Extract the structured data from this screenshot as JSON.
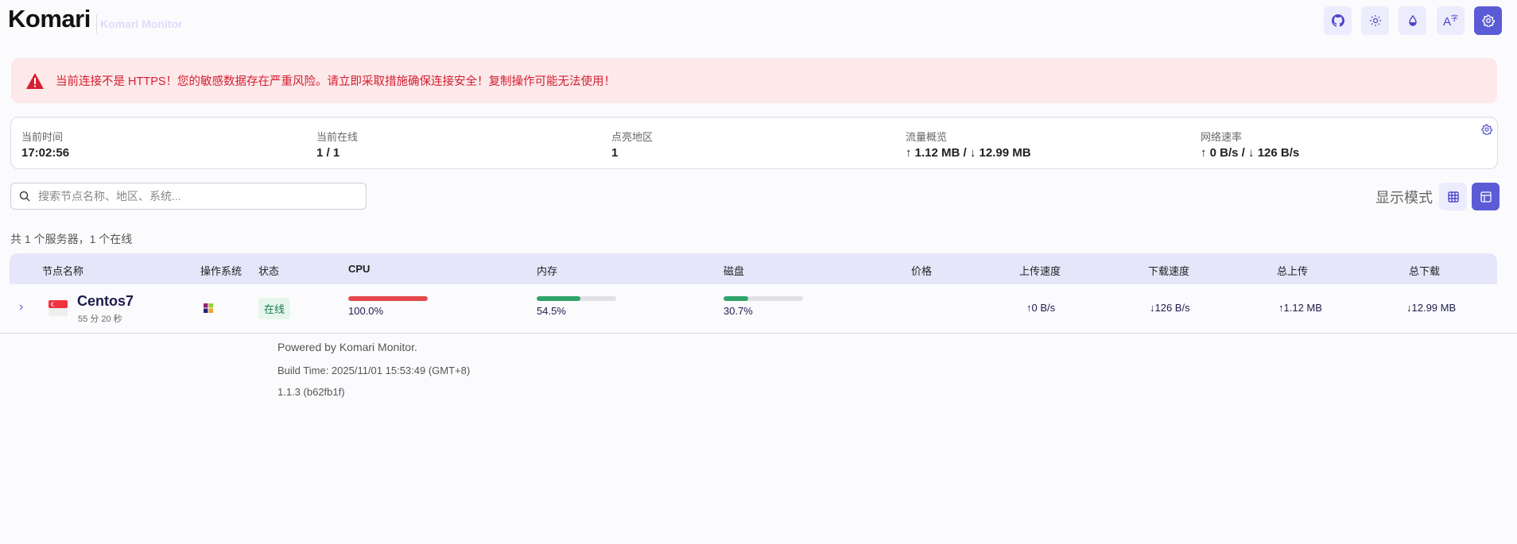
{
  "header": {
    "logo": "Komari",
    "subtitle": "Komari Monitor",
    "buttons": [
      {
        "name": "github-icon"
      },
      {
        "name": "sun-icon"
      },
      {
        "name": "drop-icon"
      },
      {
        "name": "translate-icon"
      },
      {
        "name": "gear-icon"
      }
    ]
  },
  "alert": {
    "text": "当前连接不是 HTTPS！您的敏感数据存在严重风险。请立即采取措施确保连接安全！复制操作可能无法使用！",
    "color": "#d32030"
  },
  "stats": [
    {
      "label": "当前时间",
      "value": "17:02:56"
    },
    {
      "label": "当前在线",
      "value": "1 / 1"
    },
    {
      "label": "点亮地区",
      "value": "1"
    },
    {
      "label": "流量概览",
      "value": "↑ 1.12 MB / ↓ 12.99 MB"
    },
    {
      "label": "网络速率",
      "value": "↑ 0 B/s / ↓ 126 B/s"
    }
  ],
  "search": {
    "placeholder": "搜索节点名称、地区、系统..."
  },
  "display_mode": {
    "label": "显示模式",
    "options": [
      "grid",
      "table"
    ],
    "selected": "table"
  },
  "summary": "共 1 个服务器，1 个在线",
  "table": {
    "headers": [
      "节点名称",
      "操作系统",
      "状态",
      "CPU",
      "内存",
      "磁盘",
      "价格",
      "上传速度",
      "下载速度",
      "总上传",
      "总下载"
    ],
    "rows": [
      {
        "name": "Centos7",
        "uptime": "55 分 20 秒",
        "flag": "SG",
        "os": "CentOS",
        "status": "在线",
        "cpu": {
          "text": "100.0%",
          "value": 100
        },
        "mem": {
          "text": "54.5%",
          "value": 54.5
        },
        "disk": {
          "text": "30.7%",
          "value": 30.7
        },
        "price": "",
        "up_speed": "↑0 B/s",
        "down_speed": "↓126 B/s",
        "total_up": "↑1.12 MB",
        "total_down": "↓12.99 MB"
      }
    ]
  },
  "footer": {
    "powered": "Powered by Komari Monitor.",
    "build": "Build Time: 2025/11/01 15:53:49 (GMT+8)",
    "version": "1.1.3 (b62fb1f)"
  },
  "colors": {
    "accent": "#5b5bd6",
    "cpu_bar": "#e5484d",
    "ok_bar": "#30a46c"
  }
}
